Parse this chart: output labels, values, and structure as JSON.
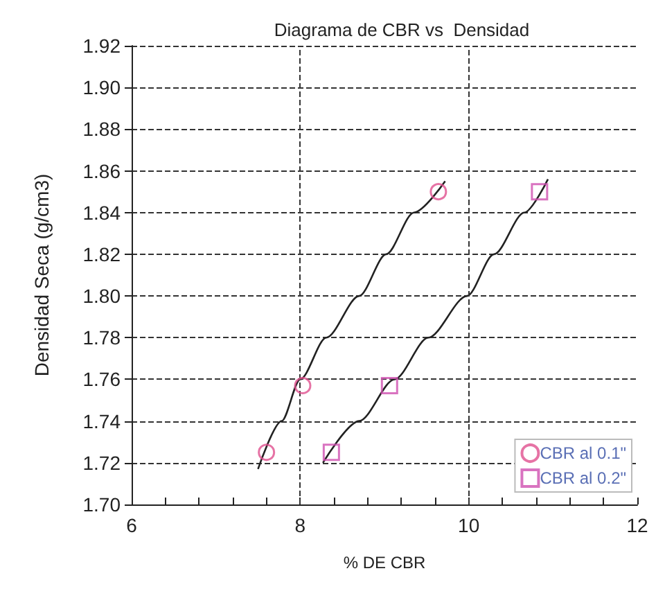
{
  "chart_data": {
    "type": "scatter",
    "title": "Diagrama de CBR vs  Densidad",
    "xlabel": "% DE CBR",
    "ylabel": "Densidad Seca (g/cm3)",
    "xlim": [
      6,
      12
    ],
    "xticks": [
      6,
      {
        "value": 6.4,
        "label": null
      },
      {
        "value": 6.8,
        "label": null
      },
      {
        "value": 7.2,
        "label": null
      },
      {
        "value": 7.6,
        "label": null
      },
      8,
      {
        "value": 8.4,
        "label": null
      },
      {
        "value": 8.8,
        "label": null
      },
      {
        "value": 9.2,
        "label": null
      },
      {
        "value": 9.6,
        "label": null
      },
      10,
      {
        "value": 10.4,
        "label": null
      },
      {
        "value": 10.8,
        "label": null
      },
      {
        "value": 11.2,
        "label": null
      },
      {
        "value": 11.6,
        "label": null
      },
      12
    ],
    "ylim": [
      1.7,
      1.92
    ],
    "yticks": [
      {
        "value": 1.7,
        "label": "1.70"
      },
      1.72,
      1.74,
      1.76,
      1.78,
      {
        "value": 1.8,
        "label": "1.80"
      },
      1.82,
      1.84,
      1.86,
      1.88,
      {
        "value": 1.9,
        "label": "1.90"
      },
      1.92
    ],
    "grid": true,
    "legend": "bottom right",
    "series": [
      {
        "name": "CBR al 0.1\"",
        "color": "#e0508f",
        "marker": "circle",
        "x": [
          7.6,
          8.03,
          9.64
        ],
        "values": [
          1.725,
          1.757,
          1.85
        ]
      },
      {
        "name": "CBR al 0.2\"",
        "color": "#d050b0",
        "marker": "square",
        "x": [
          8.37,
          9.06,
          10.84
        ],
        "values": [
          1.725,
          1.757,
          1.85
        ]
      },
      {
        "type": "line",
        "color": "#222222",
        "marker": "none",
        "x": [
          7.5,
          7.78,
          8.0,
          8.31,
          8.7,
          9.02,
          9.35,
          9.72
        ],
        "values": [
          1.717,
          1.74,
          1.76,
          1.78,
          1.8,
          1.82,
          1.84,
          1.855
        ]
      },
      {
        "type": "line",
        "color": "#222222",
        "marker": "none",
        "x": [
          8.27,
          8.7,
          9.12,
          9.52,
          9.98,
          10.3,
          10.66,
          10.94
        ],
        "values": [
          1.72,
          1.74,
          1.76,
          1.78,
          1.8,
          1.82,
          1.84,
          1.856
        ]
      }
    ]
  }
}
